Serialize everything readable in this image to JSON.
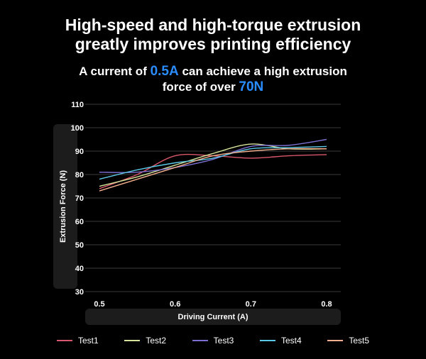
{
  "headline": {
    "line1": "High-speed and high-torque extrusion",
    "line2": "greatly improves printing efficiency"
  },
  "subheadline": {
    "part1": "A current of ",
    "current": "0.5A",
    "part2": " can achieve a high extrusion",
    "part3": "force of over ",
    "force": "70N"
  },
  "colors": {
    "accent": "#2a8cff",
    "background": "#000000",
    "gridline": "#3a3a3a",
    "label_panel": "#1c1c1c"
  },
  "chart_data": {
    "type": "line",
    "xlabel": "Driving Current (A)",
    "ylabel": "Extrusion Force (N)",
    "xlim": [
      0.5,
      0.8
    ],
    "ylim": [
      30,
      110
    ],
    "xticks": [
      "0.5",
      "0.6",
      "0.7",
      "0.8"
    ],
    "yticks": [
      "30",
      "40",
      "50",
      "60",
      "70",
      "80",
      "90",
      "100",
      "110"
    ],
    "grid": true,
    "legend_position": "bottom",
    "x": [
      0.5,
      0.55,
      0.6,
      0.65,
      0.7,
      0.75,
      0.8
    ],
    "series": [
      {
        "name": "Test1",
        "color": "#d9576b",
        "values": [
          74,
          80,
          88,
          88,
          87,
          88,
          88.5
        ]
      },
      {
        "name": "Test2",
        "color": "#d6e39a",
        "values": [
          75,
          79,
          84,
          89,
          93,
          91,
          91
        ]
      },
      {
        "name": "Test3",
        "color": "#7b6fd1",
        "values": [
          81,
          81,
          83,
          86.5,
          92,
          92.5,
          95
        ]
      },
      {
        "name": "Test4",
        "color": "#5ac8e6",
        "values": [
          78,
          82,
          85,
          87,
          91,
          91.5,
          92
        ]
      },
      {
        "name": "Test5",
        "color": "#f4b08e",
        "values": [
          73,
          78,
          83,
          88,
          90,
          91,
          91
        ]
      }
    ]
  }
}
